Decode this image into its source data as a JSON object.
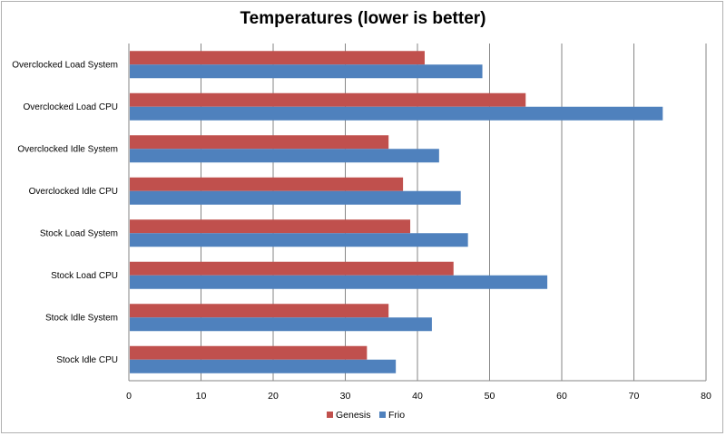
{
  "chart_data": {
    "type": "bar",
    "orientation": "horizontal",
    "title": "Temperatures (lower is better)",
    "xlabel": "",
    "ylabel": "",
    "xlim": [
      0,
      80
    ],
    "xticks": [
      0,
      10,
      20,
      30,
      40,
      50,
      60,
      70,
      80
    ],
    "grid": true,
    "legend_position": "bottom",
    "categories": [
      "Overclocked Load System",
      "Overclocked Load CPU",
      "Overclocked Idle System",
      "Overclocked Idle CPU",
      "Stock Load System",
      "Stock Load CPU",
      "Stock Idle System",
      "Stock Idle CPU"
    ],
    "series": [
      {
        "name": "Genesis",
        "color": "#c0504d",
        "values": [
          41,
          55,
          36,
          38,
          39,
          45,
          36,
          33
        ]
      },
      {
        "name": "Frio",
        "color": "#4f81bd",
        "values": [
          49,
          74,
          43,
          46,
          47,
          58,
          42,
          37
        ]
      }
    ]
  }
}
